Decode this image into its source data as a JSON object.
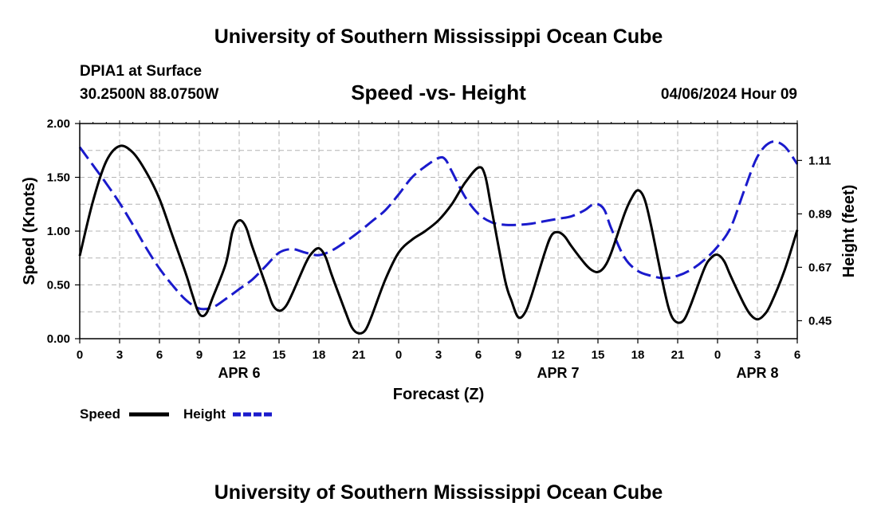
{
  "header": {
    "title": "University of Southern Mississippi Ocean Cube",
    "station": "DPIA1 at Surface",
    "coords": "30.2500N  88.0750W",
    "plot_title": "Speed -vs- Height",
    "timestamp": "04/06/2024 Hour 09"
  },
  "footer": {
    "title": "University of Southern Mississippi Ocean Cube"
  },
  "chart_data": {
    "type": "line",
    "title": "Speed -vs- Height",
    "xlabel": "Forecast (Z)",
    "ylabel_left": "Speed (Knots)",
    "ylabel_right": "Height (feet)",
    "xlim": [
      0,
      54
    ],
    "ylim_left": [
      0,
      2.0
    ],
    "ylim_right": [
      0.376,
      1.262
    ],
    "grid": true,
    "x_ticks": [
      0,
      3,
      6,
      9,
      12,
      15,
      18,
      21,
      24,
      27,
      30,
      33,
      36,
      39,
      42,
      45,
      48,
      51,
      54
    ],
    "x_tick_labels": [
      "0",
      "3",
      "6",
      "9",
      "12",
      "15",
      "18",
      "21",
      "0",
      "3",
      "6",
      "9",
      "12",
      "15",
      "18",
      "21",
      "0",
      "3",
      "6"
    ],
    "y_left_tick_values": [
      0,
      0.5,
      1.0,
      1.5,
      2.0
    ],
    "y_left_tick_labels": [
      "0.00",
      "0.50",
      "1.00",
      "1.50",
      "2.00"
    ],
    "y_right_tick_values": [
      0.45,
      0.67,
      0.89,
      1.11
    ],
    "y_right_tick_labels": [
      "0.45",
      "0.67",
      "0.89",
      "1.11"
    ],
    "date_labels": [
      {
        "x": 12,
        "label": "APR 6"
      },
      {
        "x": 36,
        "label": "APR 7"
      },
      {
        "x": 51,
        "label": "APR 8"
      }
    ],
    "legend": {
      "speed": "Speed",
      "height": "Height"
    },
    "colors": {
      "speed": "#000000",
      "height": "#1a1acc",
      "grid": "#b4b4b4"
    },
    "series": [
      {
        "name": "Speed",
        "axis": "left",
        "style": "solid",
        "points": [
          [
            0,
            0.77
          ],
          [
            1,
            1.28
          ],
          [
            2,
            1.65
          ],
          [
            3,
            1.79
          ],
          [
            4,
            1.73
          ],
          [
            5,
            1.55
          ],
          [
            6,
            1.3
          ],
          [
            7,
            0.95
          ],
          [
            8,
            0.6
          ],
          [
            8.5,
            0.4
          ],
          [
            9,
            0.23
          ],
          [
            9.5,
            0.23
          ],
          [
            10,
            0.38
          ],
          [
            11,
            0.7
          ],
          [
            11.5,
            1.0
          ],
          [
            12,
            1.1
          ],
          [
            12.5,
            1.04
          ],
          [
            13,
            0.85
          ],
          [
            14,
            0.5
          ],
          [
            14.5,
            0.32
          ],
          [
            15,
            0.26
          ],
          [
            15.5,
            0.3
          ],
          [
            16,
            0.42
          ],
          [
            17,
            0.7
          ],
          [
            17.5,
            0.8
          ],
          [
            18,
            0.84
          ],
          [
            18.5,
            0.76
          ],
          [
            19,
            0.58
          ],
          [
            20,
            0.25
          ],
          [
            20.5,
            0.1
          ],
          [
            21,
            0.05
          ],
          [
            21.5,
            0.08
          ],
          [
            22,
            0.22
          ],
          [
            23,
            0.55
          ],
          [
            24,
            0.8
          ],
          [
            25,
            0.92
          ],
          [
            26,
            1.0
          ],
          [
            27,
            1.1
          ],
          [
            28,
            1.25
          ],
          [
            29,
            1.45
          ],
          [
            30,
            1.59
          ],
          [
            30.5,
            1.52
          ],
          [
            31,
            1.2
          ],
          [
            32,
            0.55
          ],
          [
            32.5,
            0.35
          ],
          [
            33,
            0.2
          ],
          [
            33.5,
            0.24
          ],
          [
            34,
            0.4
          ],
          [
            35,
            0.8
          ],
          [
            35.5,
            0.96
          ],
          [
            36,
            0.99
          ],
          [
            36.5,
            0.95
          ],
          [
            37,
            0.86
          ],
          [
            38,
            0.7
          ],
          [
            38.5,
            0.64
          ],
          [
            39,
            0.62
          ],
          [
            39.5,
            0.67
          ],
          [
            40,
            0.8
          ],
          [
            41,
            1.16
          ],
          [
            41.5,
            1.3
          ],
          [
            42,
            1.38
          ],
          [
            42.5,
            1.3
          ],
          [
            43,
            1.05
          ],
          [
            44,
            0.45
          ],
          [
            44.5,
            0.22
          ],
          [
            45,
            0.15
          ],
          [
            45.5,
            0.18
          ],
          [
            46,
            0.32
          ],
          [
            47,
            0.65
          ],
          [
            47.5,
            0.75
          ],
          [
            48,
            0.78
          ],
          [
            48.5,
            0.72
          ],
          [
            49,
            0.58
          ],
          [
            50,
            0.32
          ],
          [
            50.5,
            0.22
          ],
          [
            51,
            0.18
          ],
          [
            51.5,
            0.22
          ],
          [
            52,
            0.32
          ],
          [
            53,
            0.62
          ],
          [
            54,
            1.01
          ]
        ]
      },
      {
        "name": "Height",
        "axis": "right",
        "style": "dashed",
        "points": [
          [
            0,
            1.165
          ],
          [
            1,
            1.09
          ],
          [
            2,
            1.015
          ],
          [
            3,
            0.935
          ],
          [
            4,
            0.845
          ],
          [
            5,
            0.75
          ],
          [
            6,
            0.665
          ],
          [
            7,
            0.595
          ],
          [
            8,
            0.535
          ],
          [
            9,
            0.5
          ],
          [
            10,
            0.505
          ],
          [
            11,
            0.54
          ],
          [
            12,
            0.58
          ],
          [
            13,
            0.62
          ],
          [
            14,
            0.675
          ],
          [
            15,
            0.73
          ],
          [
            16,
            0.745
          ],
          [
            17,
            0.73
          ],
          [
            18,
            0.72
          ],
          [
            19,
            0.74
          ],
          [
            20,
            0.775
          ],
          [
            21,
            0.815
          ],
          [
            22,
            0.86
          ],
          [
            23,
            0.905
          ],
          [
            24,
            0.97
          ],
          [
            25,
            1.04
          ],
          [
            26,
            1.085
          ],
          [
            27,
            1.12
          ],
          [
            27.5,
            1.115
          ],
          [
            28,
            1.065
          ],
          [
            29,
            0.96
          ],
          [
            30,
            0.89
          ],
          [
            31,
            0.855
          ],
          [
            32,
            0.845
          ],
          [
            33,
            0.845
          ],
          [
            34,
            0.85
          ],
          [
            35,
            0.86
          ],
          [
            36,
            0.87
          ],
          [
            37,
            0.88
          ],
          [
            38,
            0.905
          ],
          [
            38.5,
            0.925
          ],
          [
            39,
            0.93
          ],
          [
            39.5,
            0.905
          ],
          [
            40,
            0.83
          ],
          [
            41,
            0.71
          ],
          [
            42,
            0.655
          ],
          [
            43,
            0.635
          ],
          [
            44,
            0.625
          ],
          [
            45,
            0.635
          ],
          [
            46,
            0.66
          ],
          [
            47,
            0.7
          ],
          [
            48,
            0.755
          ],
          [
            49,
            0.835
          ],
          [
            50,
            0.985
          ],
          [
            51,
            1.125
          ],
          [
            52,
            1.185
          ],
          [
            53,
            1.17
          ],
          [
            54,
            1.095
          ]
        ]
      }
    ]
  }
}
